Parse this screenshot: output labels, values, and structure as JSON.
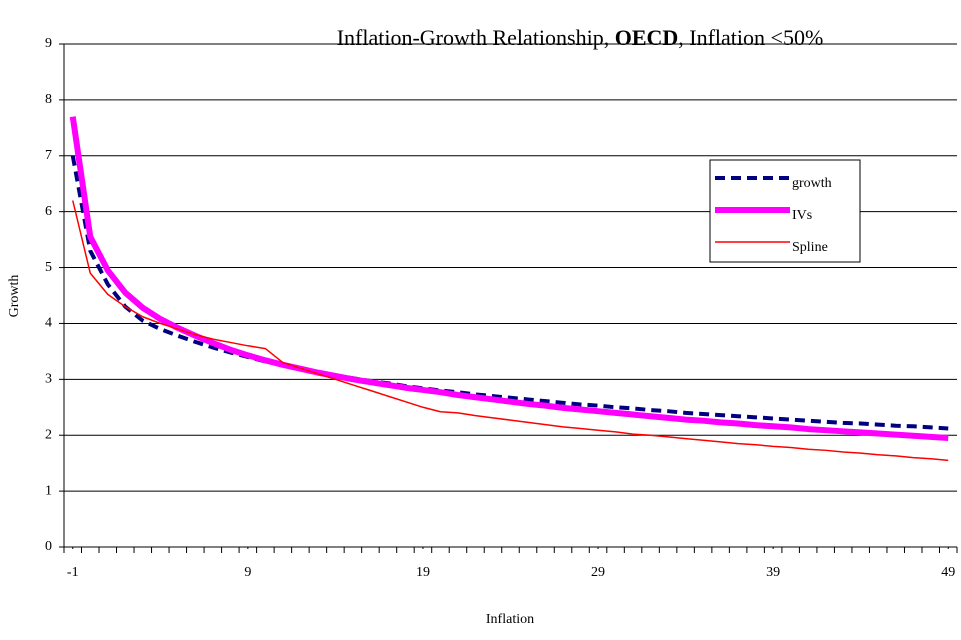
{
  "chart_data": {
    "type": "line",
    "title": [
      {
        "text": "Inflation-Growth Relationship, "
      },
      {
        "text": "OECD",
        "bold": true
      },
      {
        "text": ", Inflation <50%"
      }
    ],
    "x_label": "Inflation",
    "y_label": "Growth",
    "x": [
      -1,
      0,
      1,
      2,
      3,
      4,
      5,
      6,
      7,
      8,
      9,
      10,
      11,
      12,
      13,
      14,
      15,
      16,
      17,
      18,
      19,
      20,
      21,
      22,
      23,
      24,
      25,
      26,
      27,
      28,
      29,
      30,
      31,
      32,
      33,
      34,
      35,
      36,
      37,
      38,
      39,
      40,
      41,
      42,
      43,
      44,
      45,
      46,
      47,
      48,
      49
    ],
    "xlim": [
      -1.5,
      49.5
    ],
    "xticks": [
      -1,
      9,
      19,
      29,
      39,
      49
    ],
    "ylim": [
      0,
      9
    ],
    "yticks": [
      0,
      1,
      2,
      3,
      4,
      5,
      6,
      7,
      8,
      9
    ],
    "grid": true,
    "legend": "right",
    "series": [
      {
        "name": "growth",
        "color": "#000080",
        "width": 4,
        "line_style": "dashed",
        "values": [
          7.0,
          5.3,
          4.7,
          4.3,
          4.05,
          3.9,
          3.78,
          3.67,
          3.57,
          3.48,
          3.4,
          3.32,
          3.26,
          3.2,
          3.13,
          3.07,
          3.02,
          2.97,
          2.93,
          2.88,
          2.84,
          2.8,
          2.77,
          2.73,
          2.7,
          2.67,
          2.64,
          2.61,
          2.58,
          2.55,
          2.53,
          2.5,
          2.48,
          2.45,
          2.43,
          2.4,
          2.38,
          2.36,
          2.34,
          2.32,
          2.3,
          2.28,
          2.26,
          2.24,
          2.22,
          2.21,
          2.19,
          2.17,
          2.16,
          2.14,
          2.12
        ]
      },
      {
        "name": "IVs",
        "color": "#ff00ff",
        "width": 6,
        "line_style": "solid",
        "values": [
          7.7,
          5.55,
          4.95,
          4.55,
          4.28,
          4.08,
          3.92,
          3.78,
          3.65,
          3.53,
          3.43,
          3.34,
          3.26,
          3.19,
          3.12,
          3.06,
          3.0,
          2.95,
          2.9,
          2.85,
          2.81,
          2.77,
          2.72,
          2.68,
          2.64,
          2.6,
          2.56,
          2.53,
          2.49,
          2.46,
          2.43,
          2.4,
          2.37,
          2.34,
          2.31,
          2.28,
          2.26,
          2.23,
          2.21,
          2.18,
          2.16,
          2.14,
          2.11,
          2.09,
          2.07,
          2.05,
          2.03,
          2.01,
          1.99,
          1.97,
          1.95
        ]
      },
      {
        "name": "Spline",
        "color": "#ff0000",
        "width": 1.5,
        "line_style": "solid",
        "values": [
          6.2,
          4.9,
          4.52,
          4.3,
          4.12,
          4.0,
          3.9,
          3.8,
          3.72,
          3.66,
          3.6,
          3.55,
          3.3,
          3.2,
          3.1,
          3.0,
          2.9,
          2.8,
          2.7,
          2.6,
          2.5,
          2.42,
          2.4,
          2.35,
          2.31,
          2.27,
          2.23,
          2.19,
          2.15,
          2.12,
          2.09,
          2.06,
          2.02,
          2.0,
          1.97,
          1.94,
          1.91,
          1.88,
          1.85,
          1.83,
          1.8,
          1.78,
          1.75,
          1.73,
          1.7,
          1.68,
          1.65,
          1.63,
          1.6,
          1.58,
          1.55
        ]
      }
    ]
  }
}
